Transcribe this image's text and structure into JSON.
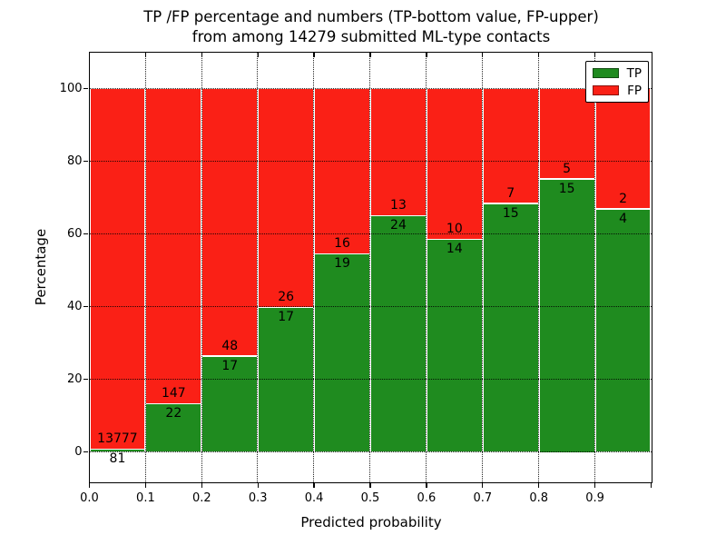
{
  "chart_data": {
    "type": "bar",
    "stacked": true,
    "title_line1": "TP /FP percentage and numbers (TP-bottom value, FP-upper)",
    "title_line2": "from among 14279 submitted ML-type contacts",
    "total_contacts": 14279,
    "xlabel": "Predicted probability",
    "ylabel": "Percentage",
    "bin_edges": [
      0.0,
      0.1,
      0.2,
      0.3,
      0.4,
      0.5,
      0.6,
      0.7,
      0.8,
      0.9,
      1.0
    ],
    "series": [
      {
        "name": "TP",
        "color": "#1f8b1f",
        "counts": [
          81,
          22,
          17,
          17,
          19,
          24,
          14,
          15,
          15,
          4
        ]
      },
      {
        "name": "FP",
        "color": "#fa2016",
        "counts": [
          13777,
          147,
          48,
          26,
          16,
          13,
          10,
          7,
          5,
          2
        ]
      }
    ],
    "bar_value_rule": "green height = TP/(TP+FP)*100, red fills to 100%",
    "x_tick_labels": [
      "0.0",
      "0.1",
      "0.2",
      "0.3",
      "0.4",
      "0.5",
      "0.6",
      "0.7",
      "0.8",
      "0.9"
    ],
    "y_tick_values": [
      0,
      20,
      40,
      60,
      80,
      100
    ],
    "xlim": [
      0.0,
      1.0
    ],
    "ylim": [
      -8.25,
      110
    ],
    "grid": "dotted",
    "legend": {
      "position": "upper right"
    }
  }
}
